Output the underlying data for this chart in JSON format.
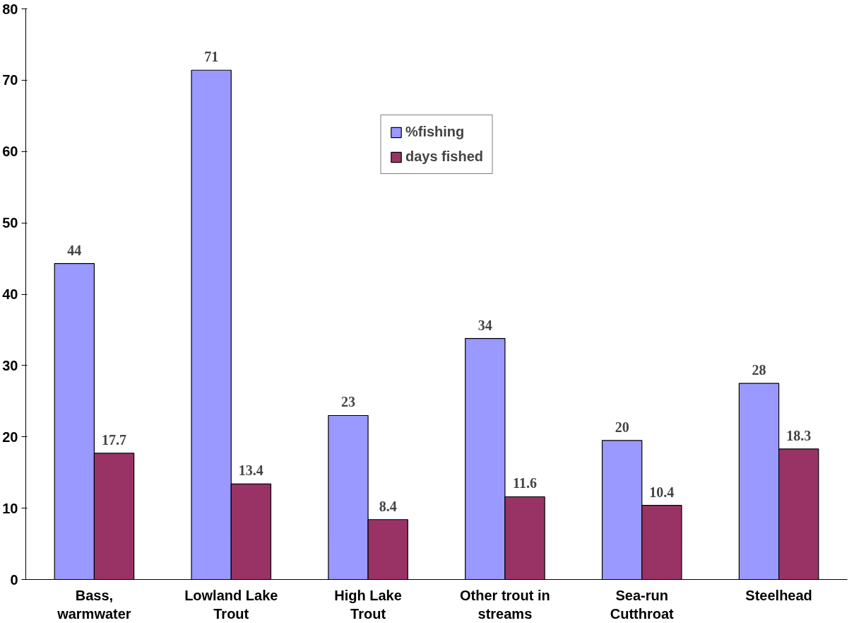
{
  "chart_data": {
    "type": "bar",
    "categories": [
      "Bass,\nwarmwater",
      "Lowland Lake\nTrout",
      "High Lake\nTrout",
      "Other trout in\nstreams",
      "Sea-run\nCutthroat",
      "Steelhead"
    ],
    "series": [
      {
        "name": "%fishing",
        "color": "#9999ff",
        "values": [
          44.3,
          71.4,
          23.0,
          33.8,
          19.5,
          27.5
        ],
        "value_labels": [
          "44",
          "71",
          "23",
          "34",
          "20",
          "28"
        ]
      },
      {
        "name": "days fished",
        "color": "#993366",
        "values": [
          17.7,
          13.4,
          8.4,
          11.6,
          10.4,
          18.3
        ],
        "value_labels": [
          "17.7",
          "13.4",
          "8.4",
          "11.6",
          "10.4",
          "18.3"
        ]
      }
    ],
    "ylim": [
      0,
      80
    ],
    "yticks": [
      0,
      10,
      20,
      30,
      40,
      50,
      60,
      70,
      80
    ],
    "grid": false,
    "legend": "top"
  }
}
